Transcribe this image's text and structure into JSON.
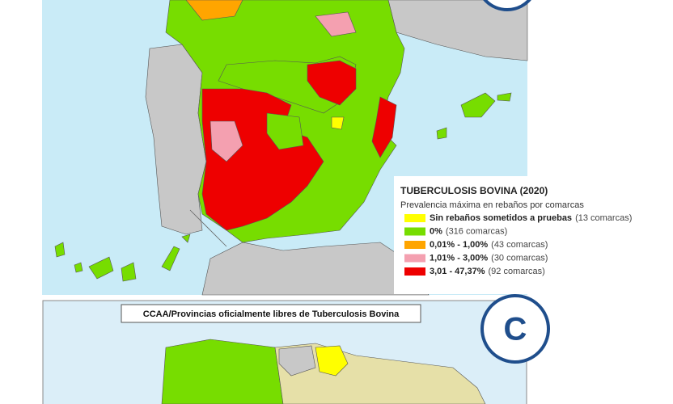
{
  "map": {
    "legend": {
      "title": "TUBERCULOSIS BOVINA (2020)",
      "subtitle": "Prevalencia máxima en rebaños por comarcas",
      "items": [
        {
          "label": "Sin rebaños sometidos a pruebas",
          "count": "(13 comarcas)",
          "color": "#ffff00"
        },
        {
          "label": "0%",
          "count": "(316 comarcas)",
          "color": "#77dd00"
        },
        {
          "label": "0,01% - 1,00%",
          "count": "(43 comarcas)",
          "color": "#ffa500"
        },
        {
          "label": "1,01% - 3,00%",
          "count": "(30 comarcas)",
          "color": "#f4a0b0"
        },
        {
          "label": "3,01 - 47,37%",
          "count": "(92 comarcas)",
          "color": "#ee0000"
        }
      ]
    }
  },
  "inset": {
    "title": "CCAA/Provincias oficialmente libres de Tuberculosis Bovina",
    "badge": "C"
  }
}
